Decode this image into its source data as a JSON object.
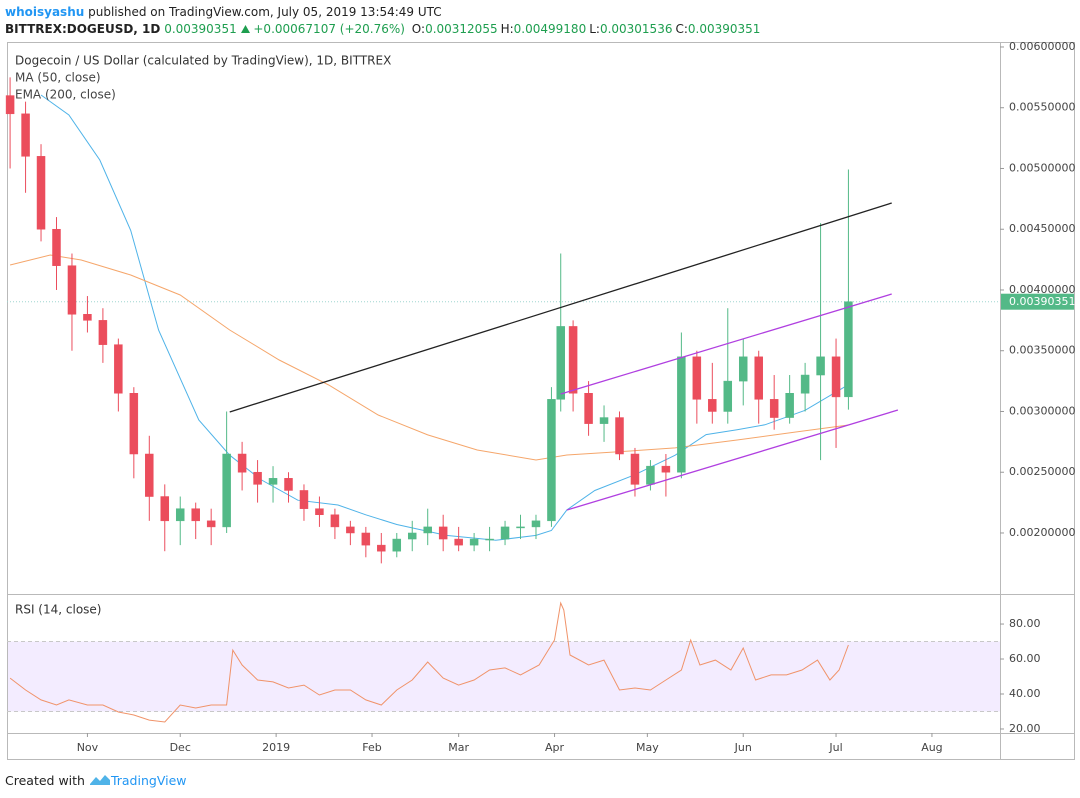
{
  "chart_data": {
    "type": "candlestick",
    "author": "whoisyashu",
    "published": "published on TradingView.com, July 05, 2019 13:54:49 UTC",
    "symbol": "BITTREX:DOGEUSD, 1D",
    "last": "0.00390351",
    "change": "+0.00067107 (+20.76%)",
    "quote": [
      {
        "label": "O:",
        "value": "0.00312055"
      },
      {
        "label": "H:",
        "value": "0.00499180"
      },
      {
        "label": "L:",
        "value": "0.00301536"
      },
      {
        "label": "C:",
        "value": "0.00390351"
      }
    ],
    "title": "Dogecoin / US Dollar (calculated by TradingView), 1D, BITTREX",
    "footer": "Created with",
    "brand": "TradingView",
    "up_color": "#53b987",
    "down_color": "#eb4d5c",
    "x": [
      "2018-10-07",
      "2018-10-12",
      "2018-10-17",
      "2018-10-22",
      "2018-10-27",
      "2018-11-01",
      "2018-11-06",
      "2018-11-11",
      "2018-11-16",
      "2018-11-21",
      "2018-11-26",
      "2018-12-01",
      "2018-12-06",
      "2018-12-11",
      "2018-12-16",
      "2018-12-21",
      "2018-12-26",
      "2018-12-31",
      "2019-01-05",
      "2019-01-10",
      "2019-01-15",
      "2019-01-20",
      "2019-01-25",
      "2019-01-30",
      "2019-02-04",
      "2019-02-09",
      "2019-02-14",
      "2019-02-19",
      "2019-02-24",
      "2019-03-01",
      "2019-03-06",
      "2019-03-11",
      "2019-03-16",
      "2019-03-21",
      "2019-03-26",
      "2019-03-31",
      "2019-04-03",
      "2019-04-07",
      "2019-04-12",
      "2019-04-17",
      "2019-04-22",
      "2019-04-27",
      "2019-05-02",
      "2019-05-07",
      "2019-05-12",
      "2019-05-17",
      "2019-05-22",
      "2019-05-27",
      "2019-06-01",
      "2019-06-06",
      "2019-06-11",
      "2019-06-16",
      "2019-06-21",
      "2019-06-26",
      "2019-07-01",
      "2019-07-05"
    ],
    "open": [
      0.0056,
      0.00545,
      0.0051,
      0.0045,
      0.0042,
      0.0038,
      0.00375,
      0.00355,
      0.00315,
      0.00265,
      0.0023,
      0.0021,
      0.0022,
      0.0021,
      0.00205,
      0.00265,
      0.0025,
      0.0024,
      0.00245,
      0.00235,
      0.0022,
      0.00215,
      0.00205,
      0.002,
      0.0019,
      0.00185,
      0.00195,
      0.002,
      0.00205,
      0.00195,
      0.0019,
      0.00195,
      0.00195,
      0.00205,
      0.00205,
      0.0021,
      0.0031,
      0.0037,
      0.00315,
      0.0029,
      0.00295,
      0.00265,
      0.0024,
      0.00255,
      0.0025,
      0.00345,
      0.0031,
      0.003,
      0.00325,
      0.00345,
      0.0031,
      0.00295,
      0.00315,
      0.0033,
      0.00345,
      0.00312055
    ],
    "high": [
      0.00575,
      0.00555,
      0.0052,
      0.0046,
      0.0043,
      0.00395,
      0.00385,
      0.0036,
      0.0032,
      0.0028,
      0.0024,
      0.0023,
      0.00225,
      0.0022,
      0.003,
      0.00275,
      0.0026,
      0.00255,
      0.0025,
      0.0024,
      0.0023,
      0.0022,
      0.0021,
      0.00205,
      0.002,
      0.002,
      0.0021,
      0.0022,
      0.00215,
      0.00205,
      0.002,
      0.00205,
      0.0021,
      0.00215,
      0.00215,
      0.0032,
      0.0043,
      0.00375,
      0.00325,
      0.00305,
      0.003,
      0.0027,
      0.0026,
      0.00265,
      0.00365,
      0.0035,
      0.0034,
      0.00385,
      0.0036,
      0.0035,
      0.0033,
      0.0033,
      0.0034,
      0.00455,
      0.0036,
      0.0049918
    ],
    "low": [
      0.005,
      0.0048,
      0.0044,
      0.004,
      0.0035,
      0.00365,
      0.0034,
      0.003,
      0.00245,
      0.0021,
      0.00185,
      0.0019,
      0.00195,
      0.0019,
      0.002,
      0.00235,
      0.00225,
      0.00225,
      0.00225,
      0.0021,
      0.00205,
      0.00195,
      0.0019,
      0.0018,
      0.00175,
      0.0018,
      0.00185,
      0.0019,
      0.00185,
      0.00185,
      0.00185,
      0.00185,
      0.0019,
      0.00195,
      0.00195,
      0.00205,
      0.003,
      0.003,
      0.0028,
      0.00275,
      0.0026,
      0.0023,
      0.00235,
      0.0023,
      0.00245,
      0.0029,
      0.0029,
      0.0029,
      0.00305,
      0.0029,
      0.00285,
      0.0029,
      0.003,
      0.0026,
      0.0027,
      0.00301536
    ],
    "close": [
      0.00545,
      0.0051,
      0.0045,
      0.0042,
      0.0038,
      0.00375,
      0.00355,
      0.00315,
      0.00265,
      0.0023,
      0.0021,
      0.0022,
      0.0021,
      0.00205,
      0.00265,
      0.0025,
      0.0024,
      0.00245,
      0.00235,
      0.0022,
      0.00215,
      0.00205,
      0.002,
      0.0019,
      0.00185,
      0.00195,
      0.002,
      0.00205,
      0.00195,
      0.0019,
      0.00195,
      0.00195,
      0.00205,
      0.00205,
      0.0021,
      0.0031,
      0.0037,
      0.00315,
      0.0029,
      0.00295,
      0.00265,
      0.0024,
      0.00255,
      0.0025,
      0.00345,
      0.0031,
      0.003,
      0.00325,
      0.00345,
      0.0031,
      0.00295,
      0.00315,
      0.0033,
      0.00345,
      0.00312,
      0.00390351
    ],
    "last_line_color": "#9fd6d0",
    "overlays": [
      {
        "name": "MA (50, close)",
        "color": "#4fb3e8",
        "x": [
          "2018-10-17",
          "2018-10-26",
          "2018-11-05",
          "2018-11-15",
          "2018-11-24",
          "2018-12-07",
          "2018-12-17",
          "2018-12-27",
          "2019-01-08",
          "2019-01-21",
          "2019-01-30",
          "2019-02-09",
          "2019-02-25",
          "2019-03-13",
          "2019-03-26",
          "2019-03-31",
          "2019-04-05",
          "2019-04-14",
          "2019-04-27",
          "2019-05-10",
          "2019-05-20",
          "2019-05-30",
          "2019-06-08",
          "2019-06-21",
          "2019-07-05"
        ],
        "values": [
          0.005605,
          0.00544,
          0.00507,
          0.00449,
          0.00367,
          0.00293,
          0.00264,
          0.00244,
          0.00227,
          0.00223,
          0.00215,
          0.00207,
          0.00198,
          0.00194,
          0.00198,
          0.00202,
          0.00219,
          0.00235,
          0.00248,
          0.00264,
          0.00281,
          0.00285,
          0.00289,
          0.00301,
          0.00322
        ]
      },
      {
        "name": "EMA (200, close)",
        "color": "#f5a66b",
        "x": [
          "2018-10-07",
          "2018-10-20",
          "2018-10-30",
          "2018-11-15",
          "2018-12-01",
          "2018-12-17",
          "2019-01-02",
          "2019-01-18",
          "2019-02-03",
          "2019-02-19",
          "2019-03-07",
          "2019-03-26",
          "2019-04-05",
          "2019-04-21",
          "2019-05-10",
          "2019-05-30",
          "2019-06-18",
          "2019-07-05"
        ],
        "values": [
          0.004206,
          0.004288,
          0.004247,
          0.004123,
          0.003959,
          0.003671,
          0.003424,
          0.003218,
          0.002971,
          0.002807,
          0.002683,
          0.002601,
          0.002642,
          0.002667,
          0.0027,
          0.002765,
          0.002831,
          0.002889
        ]
      }
    ],
    "drawings": [
      {
        "color": "#222222",
        "x": [
          "2018-12-17",
          "2019-07-19"
        ],
        "values": [
          0.002996,
          0.004716
        ]
      },
      {
        "color": "#b03fe0",
        "x": [
          "2019-04-03",
          "2019-07-19"
        ],
        "values": [
          0.003144,
          0.003967
        ]
      },
      {
        "color": "#b03fe0",
        "x": [
          "2019-04-05",
          "2019-07-21"
        ],
        "values": [
          0.002189,
          0.003012
        ]
      }
    ],
    "xlim": [
      "2018-10-06",
      "2019-08-23"
    ],
    "xticks": [
      {
        "value": "2018-11-01",
        "label": "Nov"
      },
      {
        "value": "2018-12-01",
        "label": "Dec"
      },
      {
        "value": "2019-01-01",
        "label": "2019"
      },
      {
        "value": "2019-02-01",
        "label": "Feb"
      },
      {
        "value": "2019-03-01",
        "label": "Mar"
      },
      {
        "value": "2019-04-01",
        "label": "Apr"
      },
      {
        "value": "2019-05-01",
        "label": "May"
      },
      {
        "value": "2019-06-01",
        "label": "Jun"
      },
      {
        "value": "2019-07-01",
        "label": "Jul"
      },
      {
        "value": "2019-08-01",
        "label": "Aug"
      }
    ],
    "ylim": [
      0.001506,
      0.006041
    ],
    "yticks": [
      {
        "value": 0.002,
        "label": "0.00200000"
      },
      {
        "value": 0.0025,
        "label": "0.00250000"
      },
      {
        "value": 0.003,
        "label": "0.00300000"
      },
      {
        "value": 0.0035,
        "label": "0.00350000"
      },
      {
        "value": 0.004,
        "label": "0.00400000"
      },
      {
        "value": 0.0045,
        "label": "0.00450000"
      },
      {
        "value": 0.005,
        "label": "0.00500000"
      },
      {
        "value": 0.0055,
        "label": "0.00550000"
      },
      {
        "value": 0.006,
        "label": "0.00600000"
      }
    ],
    "rsi": {
      "name": "RSI (14, close)",
      "color": "#f0936a",
      "band": [
        30,
        70
      ],
      "band_color": "#9966ff",
      "x": [
        "2018-10-07",
        "2018-10-12",
        "2018-10-17",
        "2018-10-22",
        "2018-10-26",
        "2018-11-01",
        "2018-11-06",
        "2018-11-11",
        "2018-11-16",
        "2018-11-21",
        "2018-11-26",
        "2018-12-01",
        "2018-12-06",
        "2018-12-11",
        "2018-12-16",
        "2018-12-18",
        "2018-12-21",
        "2018-12-26",
        "2018-12-31",
        "2019-01-05",
        "2019-01-10",
        "2019-01-15",
        "2019-01-20",
        "2019-01-25",
        "2019-01-30",
        "2019-02-04",
        "2019-02-09",
        "2019-02-14",
        "2019-02-19",
        "2019-02-24",
        "2019-03-01",
        "2019-03-06",
        "2019-03-11",
        "2019-03-16",
        "2019-03-21",
        "2019-03-27",
        "2019-04-01",
        "2019-04-03",
        "2019-04-04",
        "2019-04-06",
        "2019-04-12",
        "2019-04-17",
        "2019-04-22",
        "2019-04-27",
        "2019-05-02",
        "2019-05-07",
        "2019-05-12",
        "2019-05-15",
        "2019-05-18",
        "2019-05-23",
        "2019-05-28",
        "2019-06-01",
        "2019-06-05",
        "2019-06-10",
        "2019-06-15",
        "2019-06-20",
        "2019-06-25",
        "2019-06-29",
        "2019-07-02",
        "2019-07-05"
      ],
      "values": [
        49.1,
        42.3,
        36.6,
        33.7,
        36.6,
        33.7,
        33.7,
        29.7,
        28,
        25.1,
        24,
        33.7,
        32,
        33.7,
        33.7,
        65.1,
        56.6,
        48,
        46.9,
        43.4,
        45.1,
        39.4,
        42.3,
        42.3,
        36.6,
        33.7,
        42.3,
        48,
        58.3,
        49.1,
        45.1,
        48,
        53.7,
        54.9,
        50.9,
        56.6,
        70.9,
        92,
        88,
        62.3,
        56.6,
        59.4,
        42.3,
        43.4,
        42.3,
        48,
        53.7,
        70.9,
        56.6,
        59.4,
        53.7,
        66.3,
        48,
        50.9,
        50.9,
        53.7,
        59.4,
        48,
        53.7,
        68
      ],
      "ylim": [
        17.7,
        96.6
      ],
      "yticks": [
        {
          "value": 20,
          "label": "20.00"
        },
        {
          "value": 40,
          "label": "40.00"
        },
        {
          "value": 60,
          "label": "60.00"
        },
        {
          "value": 80,
          "label": "80.00"
        }
      ]
    }
  }
}
